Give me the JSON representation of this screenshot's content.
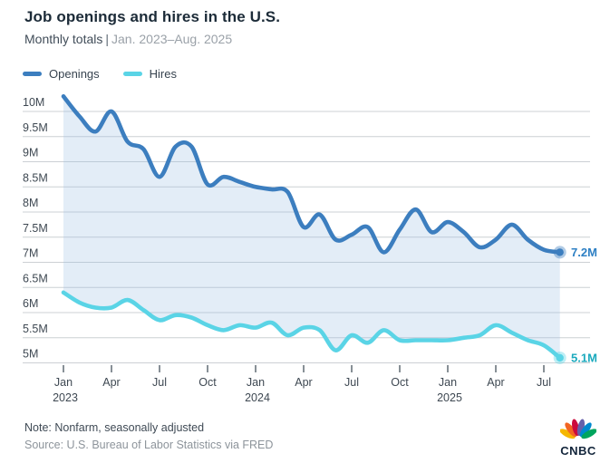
{
  "header": {
    "title": "Job openings and hires in the U.S.",
    "subtitle_prefix": "Monthly totals",
    "subtitle_separator": "|",
    "subtitle_range": "Jan. 2023–Aug. 2025"
  },
  "legend": [
    {
      "label": "Openings",
      "color": "#3c7ebf"
    },
    {
      "label": "Hires",
      "color": "#5ad4e6"
    }
  ],
  "chart_data": {
    "type": "line",
    "title": "Job openings and hires in the U.S.",
    "subtitle": "Monthly totals | Jan. 2023–Aug. 2025",
    "unit": "millions",
    "grid": true,
    "legend_position": "top-left",
    "area_fill_between_series": true,
    "ylim": [
      5,
      10
    ],
    "x": [
      "Jan 2023",
      "Feb 2023",
      "Mar 2023",
      "Apr 2023",
      "May 2023",
      "Jun 2023",
      "Jul 2023",
      "Aug 2023",
      "Sep 2023",
      "Oct 2023",
      "Nov 2023",
      "Dec 2023",
      "Jan 2024",
      "Feb 2024",
      "Mar 2024",
      "Apr 2024",
      "May 2024",
      "Jun 2024",
      "Jul 2024",
      "Aug 2024",
      "Sep 2024",
      "Oct 2024",
      "Nov 2024",
      "Dec 2024",
      "Jan 2025",
      "Feb 2025",
      "Mar 2025",
      "Apr 2025",
      "May 2025",
      "Jun 2025",
      "Jul 2025",
      "Aug 2025"
    ],
    "series": [
      {
        "name": "Openings",
        "color": "#3c7ebf",
        "end_label": "7.2M",
        "end_label_color": "#2e80c4",
        "values": [
          10.3,
          9.9,
          9.6,
          10.0,
          9.4,
          9.25,
          8.7,
          9.3,
          9.3,
          8.55,
          8.7,
          8.6,
          8.5,
          8.45,
          8.4,
          7.7,
          7.95,
          7.45,
          7.55,
          7.7,
          7.2,
          7.65,
          8.05,
          7.6,
          7.8,
          7.6,
          7.3,
          7.45,
          7.75,
          7.45,
          7.25,
          7.2
        ]
      },
      {
        "name": "Hires",
        "color": "#5ad4e6",
        "end_label": "5.1M",
        "end_label_color": "#1aa9bd",
        "values": [
          6.4,
          6.2,
          6.1,
          6.1,
          6.25,
          6.05,
          5.85,
          5.95,
          5.9,
          5.75,
          5.65,
          5.75,
          5.7,
          5.8,
          5.55,
          5.7,
          5.65,
          5.25,
          5.55,
          5.4,
          5.65,
          5.45,
          5.45,
          5.45,
          5.45,
          5.5,
          5.55,
          5.75,
          5.6,
          5.45,
          5.35,
          5.1
        ]
      }
    ],
    "y_ticks": [
      "10M",
      "9.5M",
      "9M",
      "8.5M",
      "8M",
      "7.5M",
      "7M",
      "6.5M",
      "6M",
      "5.5M",
      "5M"
    ],
    "x_ticks": [
      {
        "month_index": 0,
        "label": "Jan",
        "year": "2023"
      },
      {
        "month_index": 3,
        "label": "Apr",
        "year": ""
      },
      {
        "month_index": 6,
        "label": "Jul",
        "year": ""
      },
      {
        "month_index": 9,
        "label": "Oct",
        "year": ""
      },
      {
        "month_index": 12,
        "label": "Jan",
        "year": "2024"
      },
      {
        "month_index": 15,
        "label": "Apr",
        "year": ""
      },
      {
        "month_index": 18,
        "label": "Jul",
        "year": ""
      },
      {
        "month_index": 21,
        "label": "Oct",
        "year": ""
      },
      {
        "month_index": 24,
        "label": "Jan",
        "year": "2025"
      },
      {
        "month_index": 27,
        "label": "Apr",
        "year": ""
      },
      {
        "month_index": 30,
        "label": "Jul",
        "year": ""
      }
    ]
  },
  "footer": {
    "note": "Note: Nonfarm, seasonally adjusted",
    "source": "Source: U.S. Bureau of Labor Statistics via FRED"
  },
  "branding": {
    "wordmark": "CNBC",
    "peacock_feather_colors": [
      "#f5b700",
      "#f26522",
      "#cc0a3c",
      "#6460aa",
      "#0089cf",
      "#00a55e"
    ]
  },
  "colors": {
    "title": "#1c2b38",
    "gridline": "#ccd0d4",
    "area_fill": "rgba(155,191,226,0.28)",
    "axis_text": "#3e4852"
  }
}
